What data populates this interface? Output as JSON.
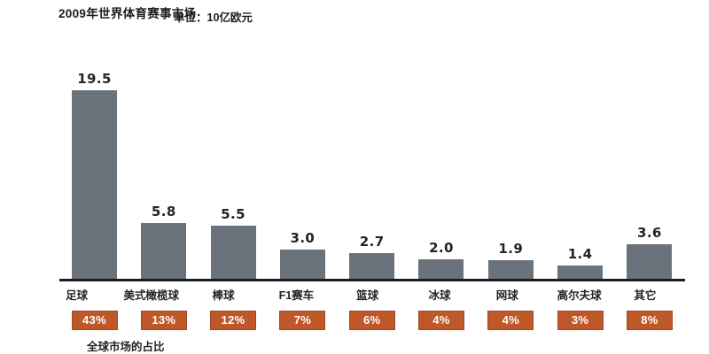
{
  "header": {
    "title": "2009年世界体育赛事市场",
    "unit_label": "单位：10亿欧元"
  },
  "footer": {
    "note": "全球市场的占比"
  },
  "colors": {
    "bar": "#6a727c",
    "axis": "#1c1c1c",
    "badge_bg": "#bf5829",
    "badge_border": "#9d4a22",
    "badge_text": "#ffffff",
    "text": "#1d1d1d"
  },
  "chart_data": {
    "type": "bar",
    "title": "2009年世界体育赛事市场",
    "unit": "10亿欧元",
    "categories": [
      "足球",
      "美式橄榄球",
      "棒球",
      "F1赛车",
      "篮球",
      "冰球",
      "网球",
      "高尔夫球",
      "其它"
    ],
    "values": [
      19.5,
      5.8,
      5.5,
      3.0,
      2.7,
      2.0,
      1.9,
      1.4,
      3.6
    ],
    "value_labels": [
      "19.5",
      "5.8",
      "5.5",
      "3.0",
      "2.7",
      "2.0",
      "1.9",
      "1.4",
      "3.6"
    ],
    "percent_labels": [
      "43%",
      "13%",
      "12%",
      "7%",
      "6%",
      "4%",
      "4%",
      "3%",
      "8%"
    ],
    "xlabel": "",
    "ylabel": "",
    "ylim": [
      0,
      20
    ],
    "grid": false,
    "legend": false,
    "value_labels_position": "above-bars",
    "footnote": "全球市场的占比"
  }
}
